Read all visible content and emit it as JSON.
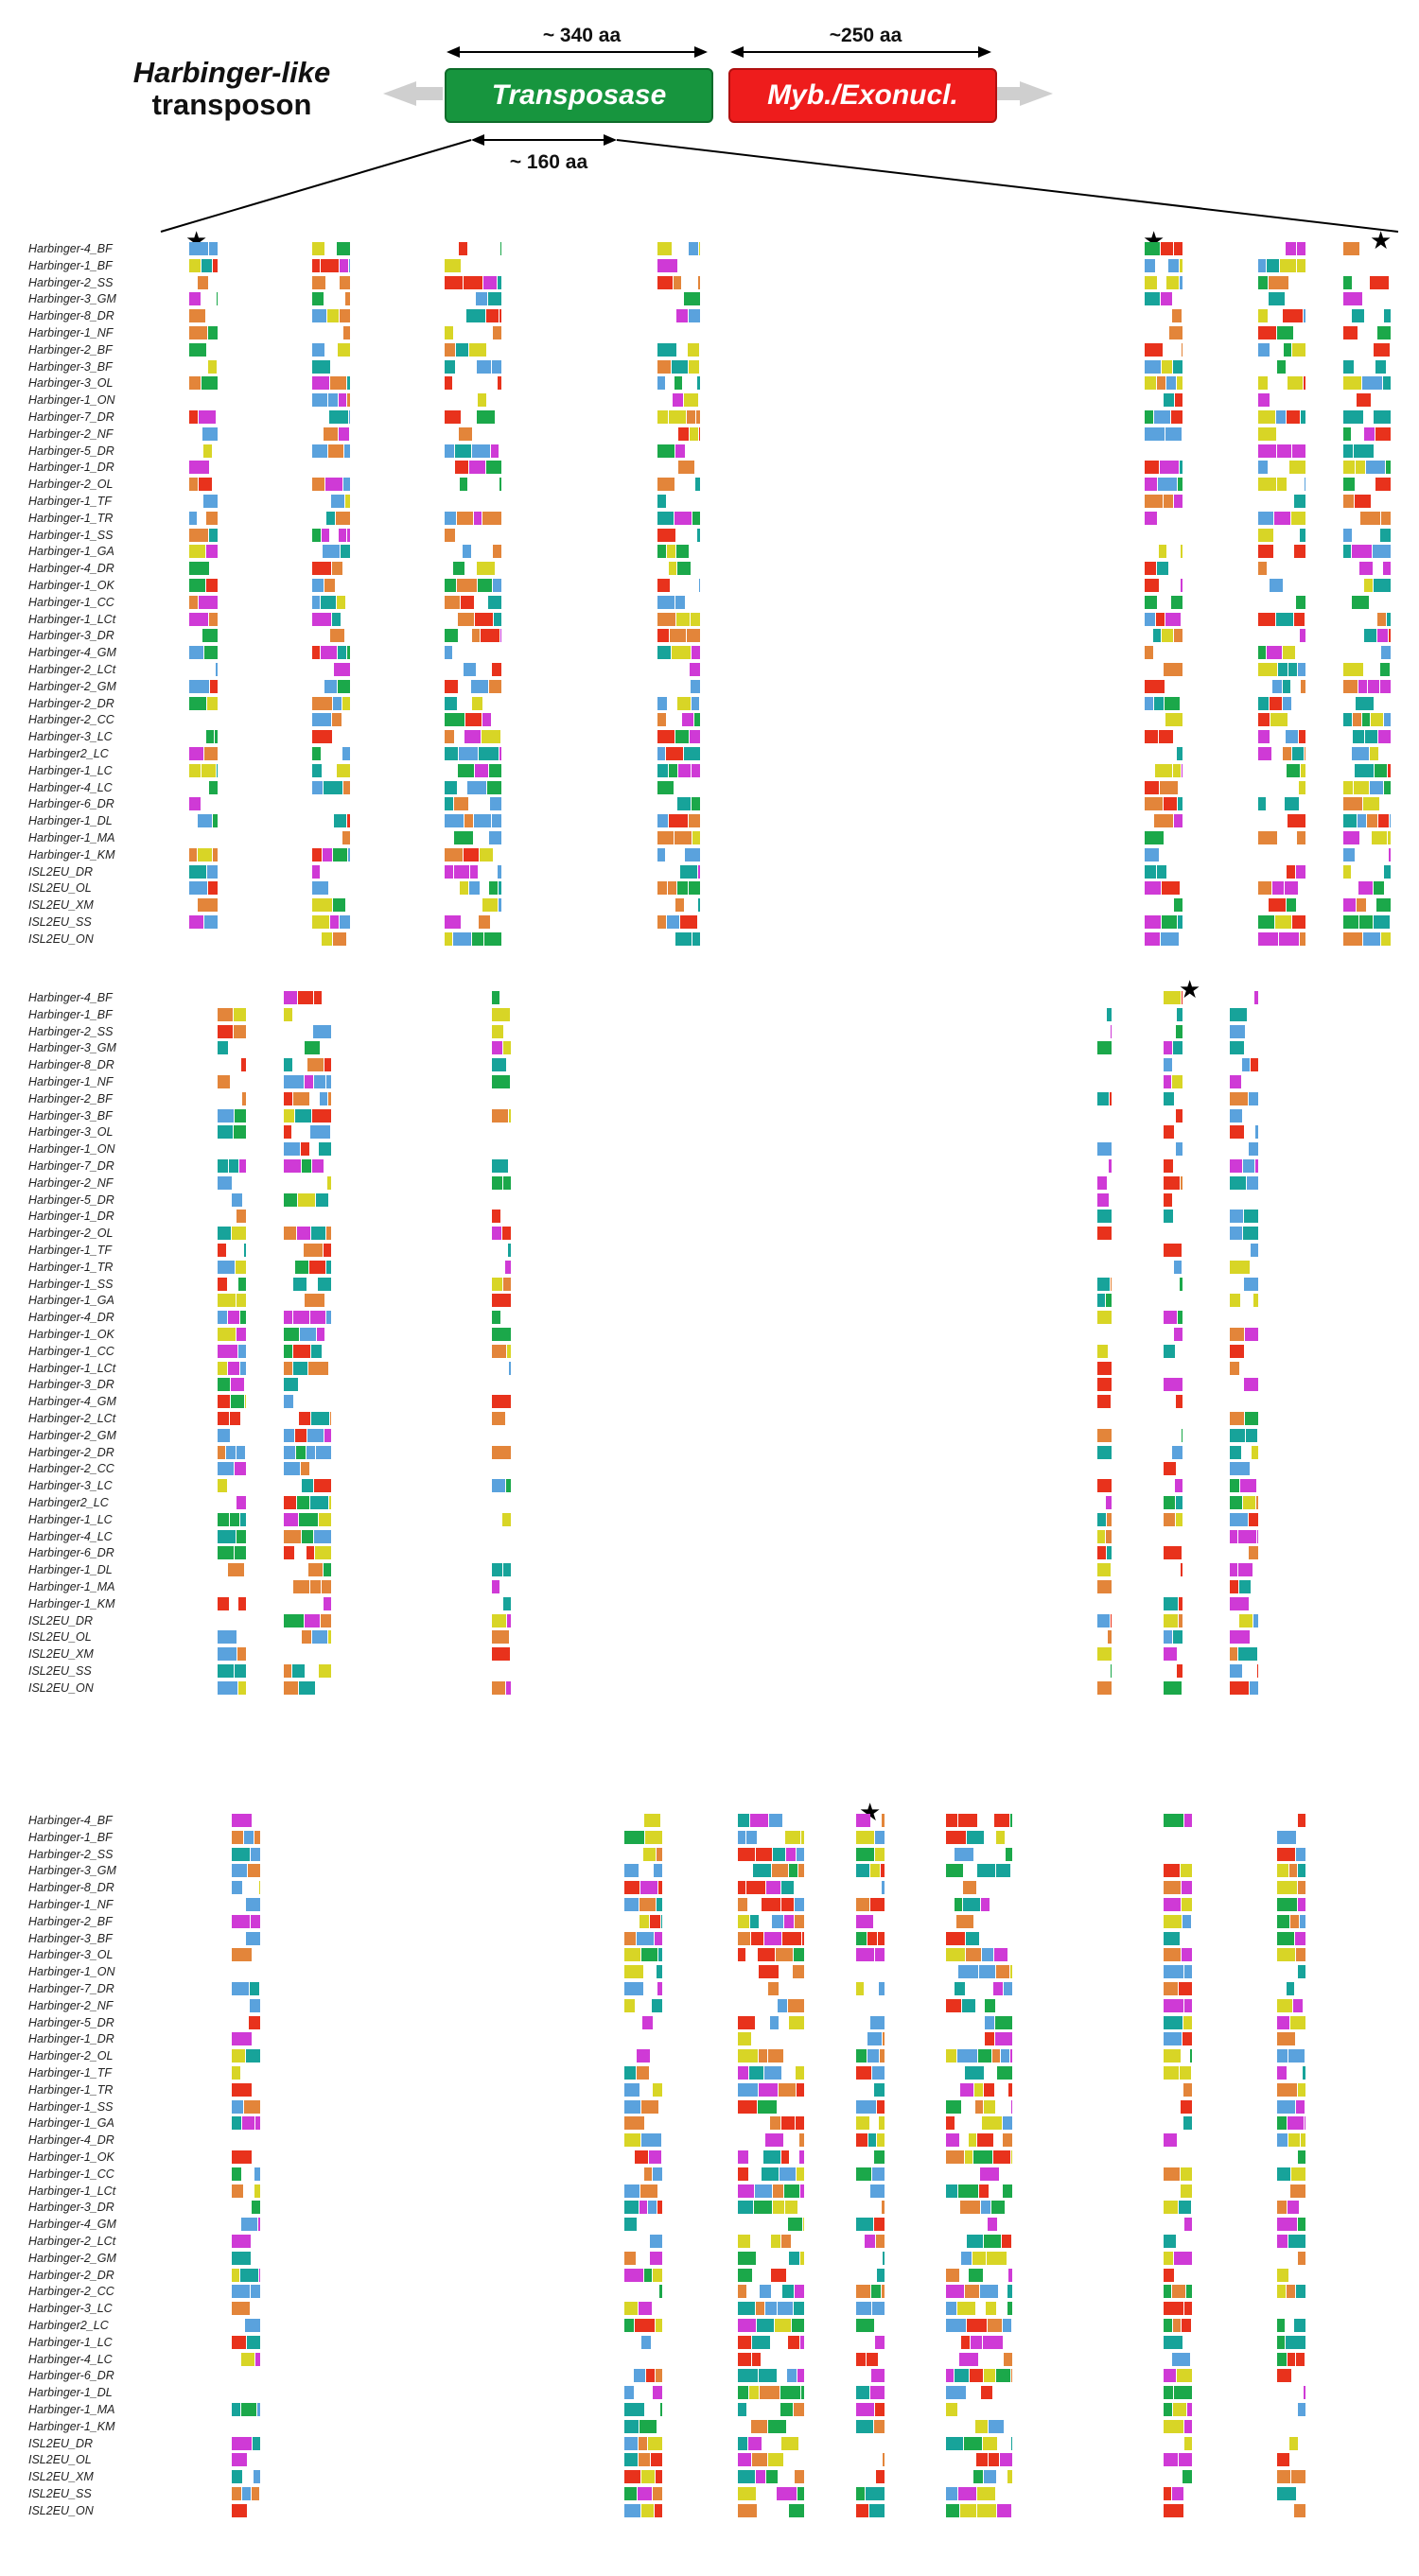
{
  "diagram": {
    "title_line1": "Harbinger-like",
    "title_line2": "transposon",
    "transposase_label": "Transposase",
    "myb_label": "Myb./Exonucl.",
    "len_transposase": "~ 340 aa",
    "len_myb": "~250 aa",
    "len_region": "~ 160 aa",
    "colors": {
      "transposase": "#17953e",
      "myb": "#ee1c1c",
      "arrow": "#cfcfcf"
    }
  },
  "alignment": {
    "residue_colors": {
      "blue": "#5aa2dd",
      "green": "#1ba84a",
      "red": "#e8321c",
      "orange": "#e3853a",
      "yellow": "#d8d526",
      "magenta": "#cf3ad6",
      "teal": "#17a39a",
      "gray": "#9fa3a6"
    },
    "blocks": [
      {
        "names": [
          "Harbinger-4_BF",
          "Harbinger-1_BF",
          "Harbinger-2_SS",
          "Harbinger-3_GM",
          "Harbinger-8_DR",
          "Harbinger-1_NF",
          "Harbinger-2_BF",
          "Harbinger-3_BF",
          "Harbinger-3_OL",
          "Harbinger-1_ON",
          "Harbinger-7_DR",
          "Harbinger-2_NF",
          "Harbinger-5_DR",
          "Harbinger-1_DR",
          "Harbinger-2_OL",
          "Harbinger-1_TF",
          "Harbinger-1_TR",
          "Harbinger-1_SS",
          "Harbinger-1_GA",
          "Harbinger-4_DR",
          "Harbinger-1_OK",
          "Harbinger-1_CC",
          "Harbinger-1_LCt",
          "Harbinger-3_DR",
          "Harbinger-4_GM",
          "Harbinger-2_LCt",
          "Harbinger-2_GM",
          "Harbinger-2_DR",
          "Harbinger-2_CC",
          "Harbinger-3_LC",
          "Harbinger2_LC",
          "Harbinger-1_LC",
          "Harbinger-4_LC",
          "Harbinger-6_DR",
          "Harbinger-1_DL",
          "Harbinger-1_MA",
          "Harbinger-1_KM",
          "ISL2EU_DR",
          "ISL2EU_OL",
          "ISL2EU_XM",
          "ISL2EU_SS",
          "ISL2EU_ON"
        ]
      },
      {
        "names": [
          "Harbinger-4_BF",
          "Harbinger-1_BF",
          "Harbinger-2_SS",
          "Harbinger-3_GM",
          "Harbinger-8_DR",
          "Harbinger-1_NF",
          "Harbinger-2_BF",
          "Harbinger-3_BF",
          "Harbinger-3_OL",
          "Harbinger-1_ON",
          "Harbinger-7_DR",
          "Harbinger-2_NF",
          "Harbinger-5_DR",
          "Harbinger-1_DR",
          "Harbinger-2_OL",
          "Harbinger-1_TF",
          "Harbinger-1_TR",
          "Harbinger-1_SS",
          "Harbinger-1_GA",
          "Harbinger-4_DR",
          "Harbinger-1_OK",
          "Harbinger-1_CC",
          "Harbinger-1_LCt",
          "Harbinger-3_DR",
          "Harbinger-4_GM",
          "Harbinger-2_LCt",
          "Harbinger-2_GM",
          "Harbinger-2_DR",
          "Harbinger-2_CC",
          "Harbinger-3_LC",
          "Harbinger2_LC",
          "Harbinger-1_LC",
          "Harbinger-4_LC",
          "Harbinger-6_DR",
          "Harbinger-1_DL",
          "Harbinger-1_MA",
          "Harbinger-1_KM",
          "ISL2EU_DR",
          "ISL2EU_OL",
          "ISL2EU_XM",
          "ISL2EU_SS",
          "ISL2EU_ON"
        ]
      },
      {
        "names": [
          "Harbinger-4_BF",
          "Harbinger-1_BF",
          "Harbinger-2_SS",
          "Harbinger-3_GM",
          "Harbinger-8_DR",
          "Harbinger-1_NF",
          "Harbinger-2_BF",
          "Harbinger-3_BF",
          "Harbinger-3_OL",
          "Harbinger-1_ON",
          "Harbinger-7_DR",
          "Harbinger-2_NF",
          "Harbinger-5_DR",
          "Harbinger-1_DR",
          "Harbinger-2_OL",
          "Harbinger-1_TF",
          "Harbinger-1_TR",
          "Harbinger-1_SS",
          "Harbinger-1_GA",
          "Harbinger-4_DR",
          "Harbinger-1_OK",
          "Harbinger-1_CC",
          "Harbinger-1_LCt",
          "Harbinger-3_DR",
          "Harbinger-4_GM",
          "Harbinger-2_LCt",
          "Harbinger-2_GM",
          "Harbinger-2_DR",
          "Harbinger-2_CC",
          "Harbinger-3_LC",
          "Harbinger2_LC",
          "Harbinger-1_LC",
          "Harbinger-4_LC",
          "Harbinger-6_DR",
          "Harbinger-1_DL",
          "Harbinger-1_MA",
          "Harbinger-1_KM",
          "ISL2EU_DR",
          "ISL2EU_OL",
          "ISL2EU_XM",
          "ISL2EU_SS",
          "ISL2EU_ON"
        ]
      }
    ]
  }
}
